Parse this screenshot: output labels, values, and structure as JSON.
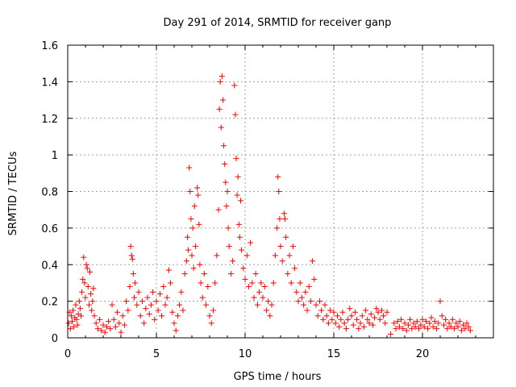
{
  "chart_data": {
    "type": "scatter",
    "title": "Day 291 of 2014, SRMTID for receiver ganp",
    "xlabel": "GPS time / hours",
    "ylabel": "SRMTID / TECUs",
    "xlim": [
      0,
      24
    ],
    "ylim": [
      0,
      1.6
    ],
    "x_ticks": [
      0,
      5,
      10,
      15,
      20
    ],
    "x_tick_labels": [
      "0",
      "5",
      "10",
      "15",
      "20"
    ],
    "y_ticks": [
      0,
      0.2,
      0.4,
      0.6,
      0.8,
      1.0,
      1.2,
      1.4,
      1.6
    ],
    "y_tick_labels": [
      "0",
      "0.2",
      "0.4",
      "0.6",
      "0.8",
      "1",
      "1.2",
      "1.4",
      "1.6"
    ],
    "grid": true,
    "marker": "plus",
    "color": "#ff0000",
    "series": [
      {
        "points": [
          [
            0.05,
            0.08
          ],
          [
            0.1,
            0.14
          ],
          [
            0.15,
            0.05
          ],
          [
            0.2,
            0.12
          ],
          [
            0.25,
            0.09
          ],
          [
            0.3,
            0.15
          ],
          [
            0.35,
            0.06
          ],
          [
            0.4,
            0.11
          ],
          [
            0.45,
            0.18
          ],
          [
            0.5,
            0.1
          ],
          [
            0.55,
            0.07
          ],
          [
            0.6,
            0.13
          ],
          [
            0.65,
            0.2
          ],
          [
            0.7,
            0.16
          ],
          [
            0.75,
            0.12
          ],
          [
            0.8,
            0.25
          ],
          [
            0.85,
            0.32
          ],
          [
            0.9,
            0.44
          ],
          [
            0.95,
            0.3
          ],
          [
            1.0,
            0.22
          ],
          [
            1.05,
            0.4
          ],
          [
            1.1,
            0.38
          ],
          [
            1.15,
            0.28
          ],
          [
            1.2,
            0.18
          ],
          [
            1.25,
            0.36
          ],
          [
            1.3,
            0.24
          ],
          [
            1.35,
            0.15
          ],
          [
            1.4,
            0.2
          ],
          [
            1.45,
            0.27
          ],
          [
            1.5,
            0.12
          ],
          [
            1.6,
            0.08
          ],
          [
            1.7,
            0.05
          ],
          [
            1.8,
            0.1
          ],
          [
            1.9,
            0.04
          ],
          [
            2.0,
            0.07
          ],
          [
            2.1,
            0.03
          ],
          [
            2.2,
            0.06
          ],
          [
            2.3,
            0.09
          ],
          [
            2.4,
            0.05
          ],
          [
            2.5,
            0.18
          ],
          [
            2.6,
            0.1
          ],
          [
            2.7,
            0.06
          ],
          [
            2.8,
            0.14
          ],
          [
            2.9,
            0.08
          ],
          [
            3.0,
            0.03
          ],
          [
            3.1,
            0.12
          ],
          [
            3.2,
            0.07
          ],
          [
            3.3,
            0.2
          ],
          [
            3.4,
            0.15
          ],
          [
            3.5,
            0.28
          ],
          [
            3.55,
            0.5
          ],
          [
            3.6,
            0.45
          ],
          [
            3.65,
            0.43
          ],
          [
            3.7,
            0.35
          ],
          [
            3.75,
            0.22
          ],
          [
            3.8,
            0.3
          ],
          [
            3.9,
            0.18
          ],
          [
            4.0,
            0.25
          ],
          [
            4.1,
            0.12
          ],
          [
            4.2,
            0.2
          ],
          [
            4.3,
            0.08
          ],
          [
            4.4,
            0.16
          ],
          [
            4.5,
            0.22
          ],
          [
            4.6,
            0.13
          ],
          [
            4.7,
            0.18
          ],
          [
            4.8,
            0.25
          ],
          [
            4.9,
            0.1
          ],
          [
            5.0,
            0.2
          ],
          [
            5.1,
            0.15
          ],
          [
            5.2,
            0.24
          ],
          [
            5.3,
            0.12
          ],
          [
            5.4,
            0.28
          ],
          [
            5.5,
            0.18
          ],
          [
            5.6,
            0.22
          ],
          [
            5.7,
            0.37
          ],
          [
            5.8,
            0.3
          ],
          [
            5.9,
            0.14
          ],
          [
            6.0,
            0.08
          ],
          [
            6.1,
            0.04
          ],
          [
            6.2,
            0.12
          ],
          [
            6.3,
            0.18
          ],
          [
            6.4,
            0.25
          ],
          [
            6.5,
            0.15
          ],
          [
            6.6,
            0.35
          ],
          [
            6.7,
            0.42
          ],
          [
            6.75,
            0.55
          ],
          [
            6.8,
            0.48
          ],
          [
            6.85,
            0.93
          ],
          [
            6.9,
            0.8
          ],
          [
            6.95,
            0.65
          ],
          [
            7.0,
            0.45
          ],
          [
            7.05,
            0.6
          ],
          [
            7.1,
            0.38
          ],
          [
            7.15,
            0.72
          ],
          [
            7.2,
            0.5
          ],
          [
            7.3,
            0.82
          ],
          [
            7.35,
            0.78
          ],
          [
            7.4,
            0.62
          ],
          [
            7.45,
            0.4
          ],
          [
            7.5,
            0.3
          ],
          [
            7.6,
            0.22
          ],
          [
            7.7,
            0.35
          ],
          [
            7.8,
            0.18
          ],
          [
            7.9,
            0.28
          ],
          [
            8.0,
            0.12
          ],
          [
            8.1,
            0.08
          ],
          [
            8.2,
            0.15
          ],
          [
            8.3,
            0.3
          ],
          [
            8.4,
            0.45
          ],
          [
            8.5,
            0.7
          ],
          [
            8.55,
            1.25
          ],
          [
            8.6,
            1.4
          ],
          [
            8.65,
            1.15
          ],
          [
            8.7,
            1.43
          ],
          [
            8.75,
            1.3
          ],
          [
            8.8,
            1.05
          ],
          [
            8.85,
            0.95
          ],
          [
            8.9,
            0.85
          ],
          [
            8.95,
            0.72
          ],
          [
            9.0,
            0.8
          ],
          [
            9.05,
            0.6
          ],
          [
            9.1,
            0.5
          ],
          [
            9.2,
            0.35
          ],
          [
            9.3,
            0.42
          ],
          [
            9.4,
            1.38
          ],
          [
            9.45,
            1.22
          ],
          [
            9.5,
            0.98
          ],
          [
            9.55,
            0.78
          ],
          [
            9.6,
            0.88
          ],
          [
            9.65,
            0.62
          ],
          [
            9.7,
            0.55
          ],
          [
            9.75,
            0.75
          ],
          [
            9.8,
            0.48
          ],
          [
            9.9,
            0.38
          ],
          [
            10.0,
            0.32
          ],
          [
            10.1,
            0.45
          ],
          [
            10.2,
            0.28
          ],
          [
            10.3,
            0.52
          ],
          [
            10.4,
            0.3
          ],
          [
            10.5,
            0.22
          ],
          [
            10.6,
            0.35
          ],
          [
            10.7,
            0.18
          ],
          [
            10.8,
            0.25
          ],
          [
            10.9,
            0.3
          ],
          [
            11.0,
            0.22
          ],
          [
            11.1,
            0.28
          ],
          [
            11.2,
            0.15
          ],
          [
            11.3,
            0.2
          ],
          [
            11.4,
            0.12
          ],
          [
            11.5,
            0.18
          ],
          [
            11.6,
            0.3
          ],
          [
            11.7,
            0.45
          ],
          [
            11.8,
            0.6
          ],
          [
            11.85,
            0.88
          ],
          [
            11.9,
            0.8
          ],
          [
            11.95,
            0.65
          ],
          [
            12.0,
            0.5
          ],
          [
            12.1,
            0.42
          ],
          [
            12.2,
            0.68
          ],
          [
            12.25,
            0.65
          ],
          [
            12.3,
            0.55
          ],
          [
            12.4,
            0.35
          ],
          [
            12.5,
            0.45
          ],
          [
            12.6,
            0.3
          ],
          [
            12.7,
            0.5
          ],
          [
            12.8,
            0.38
          ],
          [
            12.9,
            0.25
          ],
          [
            13.0,
            0.2
          ],
          [
            13.1,
            0.3
          ],
          [
            13.2,
            0.22
          ],
          [
            13.3,
            0.18
          ],
          [
            13.4,
            0.25
          ],
          [
            13.5,
            0.15
          ],
          [
            13.6,
            0.28
          ],
          [
            13.7,
            0.2
          ],
          [
            13.8,
            0.42
          ],
          [
            13.9,
            0.32
          ],
          [
            14.0,
            0.18
          ],
          [
            14.1,
            0.12
          ],
          [
            14.2,
            0.2
          ],
          [
            14.3,
            0.15
          ],
          [
            14.4,
            0.1
          ],
          [
            14.5,
            0.18
          ],
          [
            14.6,
            0.12
          ],
          [
            14.7,
            0.08
          ],
          [
            14.8,
            0.15
          ],
          [
            14.9,
            0.1
          ],
          [
            15.0,
            0.14
          ],
          [
            15.1,
            0.08
          ],
          [
            15.2,
            0.12
          ],
          [
            15.3,
            0.06
          ],
          [
            15.4,
            0.1
          ],
          [
            15.5,
            0.14
          ],
          [
            15.6,
            0.08
          ],
          [
            15.7,
            0.05
          ],
          [
            15.8,
            0.1
          ],
          [
            15.9,
            0.16
          ],
          [
            16.0,
            0.12
          ],
          [
            16.1,
            0.07
          ],
          [
            16.2,
            0.14
          ],
          [
            16.3,
            0.1
          ],
          [
            16.4,
            0.05
          ],
          [
            16.5,
            0.08
          ],
          [
            16.6,
            0.12
          ],
          [
            16.7,
            0.06
          ],
          [
            16.8,
            0.15
          ],
          [
            16.9,
            0.1
          ],
          [
            17.0,
            0.08
          ],
          [
            17.1,
            0.13
          ],
          [
            17.2,
            0.07
          ],
          [
            17.3,
            0.11
          ],
          [
            17.4,
            0.16
          ],
          [
            17.5,
            0.14
          ],
          [
            17.6,
            0.1
          ],
          [
            17.7,
            0.15
          ],
          [
            17.8,
            0.12
          ],
          [
            17.9,
            0.08
          ],
          [
            18.0,
            0.14
          ],
          [
            18.2,
            0.02
          ],
          [
            18.4,
            0.08
          ],
          [
            18.5,
            0.05
          ],
          [
            18.6,
            0.09
          ],
          [
            18.7,
            0.06
          ],
          [
            18.8,
            0.1
          ],
          [
            18.9,
            0.05
          ],
          [
            19.0,
            0.08
          ],
          [
            19.1,
            0.04
          ],
          [
            19.2,
            0.07
          ],
          [
            19.3,
            0.1
          ],
          [
            19.4,
            0.05
          ],
          [
            19.5,
            0.08
          ],
          [
            19.6,
            0.06
          ],
          [
            19.7,
            0.09
          ],
          [
            19.8,
            0.05
          ],
          [
            19.9,
            0.07
          ],
          [
            20.0,
            0.1
          ],
          [
            20.1,
            0.06
          ],
          [
            20.2,
            0.09
          ],
          [
            20.3,
            0.05
          ],
          [
            20.4,
            0.08
          ],
          [
            20.5,
            0.11
          ],
          [
            20.6,
            0.06
          ],
          [
            20.7,
            0.09
          ],
          [
            20.8,
            0.05
          ],
          [
            20.9,
            0.08
          ],
          [
            21.0,
            0.2
          ],
          [
            21.1,
            0.12
          ],
          [
            21.2,
            0.07
          ],
          [
            21.3,
            0.1
          ],
          [
            21.4,
            0.05
          ],
          [
            21.5,
            0.08
          ],
          [
            21.6,
            0.06
          ],
          [
            21.7,
            0.1
          ],
          [
            21.8,
            0.05
          ],
          [
            21.9,
            0.08
          ],
          [
            22.0,
            0.06
          ],
          [
            22.1,
            0.09
          ],
          [
            22.2,
            0.04
          ],
          [
            22.3,
            0.07
          ],
          [
            22.4,
            0.05
          ],
          [
            22.5,
            0.08
          ],
          [
            22.6,
            0.06
          ],
          [
            22.7,
            0.04
          ]
        ]
      }
    ]
  }
}
